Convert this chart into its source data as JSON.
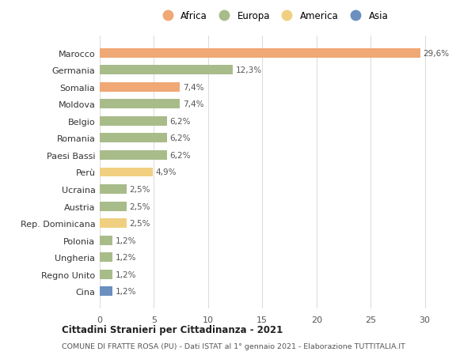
{
  "countries": [
    "Marocco",
    "Germania",
    "Somalia",
    "Moldova",
    "Belgio",
    "Romania",
    "Paesi Bassi",
    "Perù",
    "Ucraina",
    "Austria",
    "Rep. Dominicana",
    "Polonia",
    "Ungheria",
    "Regno Unito",
    "Cina"
  ],
  "values": [
    29.6,
    12.3,
    7.4,
    7.4,
    6.2,
    6.2,
    6.2,
    4.9,
    2.5,
    2.5,
    2.5,
    1.2,
    1.2,
    1.2,
    1.2
  ],
  "labels": [
    "29,6%",
    "12,3%",
    "7,4%",
    "7,4%",
    "6,2%",
    "6,2%",
    "6,2%",
    "4,9%",
    "2,5%",
    "2,5%",
    "2,5%",
    "1,2%",
    "1,2%",
    "1,2%",
    "1,2%"
  ],
  "continents": [
    "Africa",
    "Europa",
    "Africa",
    "Europa",
    "Europa",
    "Europa",
    "Europa",
    "America",
    "Europa",
    "Europa",
    "America",
    "Europa",
    "Europa",
    "Europa",
    "Asia"
  ],
  "colors": {
    "Africa": "#F0A875",
    "Europa": "#A8BC8A",
    "America": "#F0D080",
    "Asia": "#6B8FBF"
  },
  "legend_order": [
    "Africa",
    "Europa",
    "America",
    "Asia"
  ],
  "title": "Cittadini Stranieri per Cittadinanza - 2021",
  "subtitle": "COMUNE DI FRATTE ROSA (PU) - Dati ISTAT al 1° gennaio 2021 - Elaborazione TUTTITALIA.IT",
  "xlim": [
    0,
    32
  ],
  "xticks": [
    0,
    5,
    10,
    15,
    20,
    25,
    30
  ],
  "background_color": "#ffffff",
  "grid_color": "#dddddd"
}
